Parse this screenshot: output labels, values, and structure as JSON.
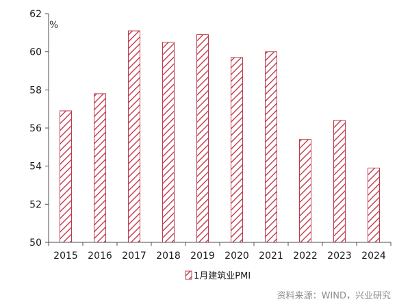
{
  "chart_data": {
    "type": "bar",
    "categories": [
      "2015",
      "2016",
      "2017",
      "2018",
      "2019",
      "2020",
      "2021",
      "2022",
      "2023",
      "2024"
    ],
    "series": [
      {
        "name": "1月建筑业PMI",
        "values": [
          56.9,
          57.8,
          61.1,
          60.5,
          60.9,
          59.7,
          60.0,
          55.4,
          56.4,
          53.9
        ]
      }
    ],
    "ylim": [
      50,
      62
    ],
    "yticks": [
      50,
      52,
      54,
      56,
      58,
      60,
      62
    ],
    "y_unit": "%",
    "title": "",
    "xlabel": "",
    "ylabel": "",
    "grid": false,
    "legend": "bottom-center",
    "bar_fill": "hatched-diagonal",
    "colors": {
      "bar_stroke": "#c0394b",
      "bar_hatch": "#c0394b",
      "axis": "#4d4d4d"
    }
  },
  "source": "资料来源：WIND，兴业研究"
}
